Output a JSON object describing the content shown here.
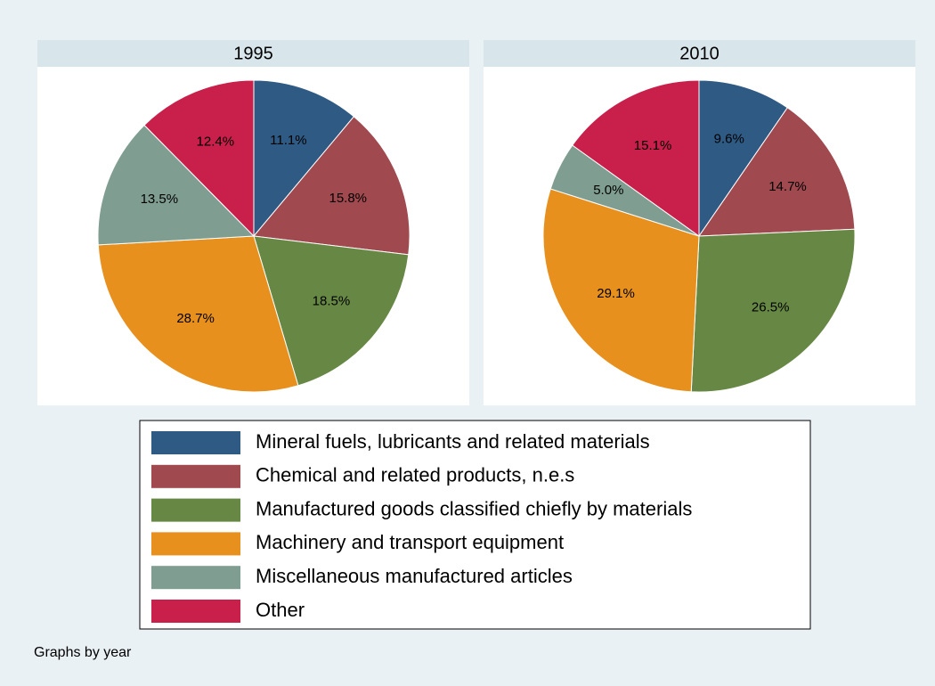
{
  "chart_data": [
    {
      "type": "pie",
      "title": "1995",
      "categories": [
        "Mineral fuels, lubricants and related materials",
        "Chemical and related products, n.e.s",
        "Manufactured goods classified chiefly by materials",
        "Machinery and transport equipment",
        "Miscellaneous manufactured articles",
        "Other"
      ],
      "values": [
        11.1,
        15.8,
        18.5,
        28.7,
        13.5,
        12.4
      ],
      "value_labels": [
        "11.1%",
        "15.8%",
        "18.5%",
        "28.7%",
        "13.5%",
        "12.4%"
      ],
      "colors": [
        "#2e5a84",
        "#a0494f",
        "#668844",
        "#e8901e",
        "#7f9d91",
        "#c8204a"
      ]
    },
    {
      "type": "pie",
      "title": "2010",
      "categories": [
        "Mineral fuels, lubricants and related materials",
        "Chemical and related products, n.e.s",
        "Manufactured goods classified chiefly by materials",
        "Machinery and transport equipment",
        "Miscellaneous manufactured articles",
        "Other"
      ],
      "values": [
        9.6,
        14.7,
        26.5,
        29.1,
        5.0,
        15.1
      ],
      "value_labels": [
        "9.6%",
        "14.7%",
        "26.5%",
        "29.1%",
        "5.0%",
        "15.1%"
      ],
      "colors": [
        "#2e5a84",
        "#a0494f",
        "#668844",
        "#e8901e",
        "#7f9d91",
        "#c8204a"
      ]
    }
  ],
  "note": "Graphs by year"
}
